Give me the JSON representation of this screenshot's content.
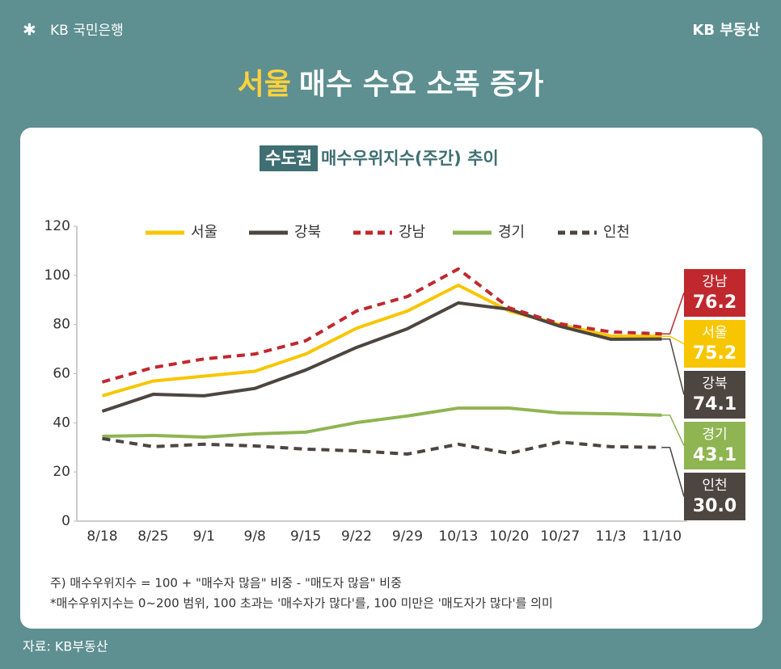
{
  "header": {
    "bank": "KB 국민은행",
    "brand": "KB 부동산",
    "headline_highlight": "서울",
    "headline": "매수 수요 소폭 증가"
  },
  "chart_data": {
    "type": "line",
    "title_highlight": "수도권",
    "title": "매수우위지수(주간) 추이",
    "categories": [
      "8/18",
      "8/25",
      "9/1",
      "9/8",
      "9/15",
      "9/22",
      "9/29",
      "10/13",
      "10/20",
      "10/27",
      "11/3",
      "11/10"
    ],
    "series": [
      {
        "name": "서울",
        "color": "#f7c600",
        "dash": false,
        "values": [
          51,
          57,
          59,
          61,
          68,
          78.5,
          85.5,
          96,
          85.5,
          80,
          75.3,
          75.2
        ],
        "value_labels": [
          null,
          null,
          null,
          null,
          null,
          null,
          null,
          null,
          null,
          null,
          null,
          "75.2"
        ]
      },
      {
        "name": "강북",
        "color": "#4d4540",
        "dash": false,
        "values": [
          44.7,
          51.6,
          51,
          54,
          61.5,
          70.7,
          78.3,
          88.8,
          86.2,
          79.3,
          74,
          74.1
        ],
        "value_labels": [
          null,
          null,
          null,
          null,
          null,
          null,
          null,
          null,
          null,
          null,
          null,
          "74.1"
        ]
      },
      {
        "name": "강남",
        "color": "#c0282d",
        "dash": true,
        "values": [
          56.6,
          62.5,
          66,
          68,
          73.4,
          85.5,
          91.4,
          102.6,
          86.8,
          80.3,
          77,
          76.2
        ],
        "value_labels": [
          null,
          null,
          null,
          null,
          null,
          null,
          null,
          null,
          null,
          null,
          null,
          "76.2"
        ]
      },
      {
        "name": "경기",
        "color": "#8fb552",
        "dash": false,
        "values": [
          34.5,
          34.9,
          34.2,
          35.5,
          36.2,
          40.1,
          42.8,
          46,
          46,
          44,
          43.7,
          43.1
        ],
        "value_labels": [
          null,
          null,
          null,
          null,
          null,
          null,
          null,
          null,
          null,
          null,
          null,
          "43.1"
        ]
      },
      {
        "name": "인천",
        "color": "#4d4540",
        "dash": true,
        "values": [
          33.6,
          30.3,
          31.3,
          30.6,
          29.3,
          28.6,
          27.3,
          31.3,
          27.6,
          32.2,
          30.3,
          30
        ],
        "value_labels": [
          null,
          null,
          null,
          null,
          null,
          null,
          null,
          null,
          null,
          null,
          null,
          "30.0"
        ]
      }
    ],
    "ylim": [
      0,
      120
    ],
    "yticks": [
      0,
      20,
      40,
      60,
      80,
      100,
      120
    ],
    "grid": false
  },
  "notes": [
    "주) 매수우위지수 = 100 + \"매수자 많음\" 비중 - \"매도자 많음\" 비중",
    "*매수우위지수는 0~200 범위, 100 초과는 '매수자가 많다'를, 100 미만은 '매도자가 많다'를 의미"
  ],
  "source": "자료: KB부동산"
}
